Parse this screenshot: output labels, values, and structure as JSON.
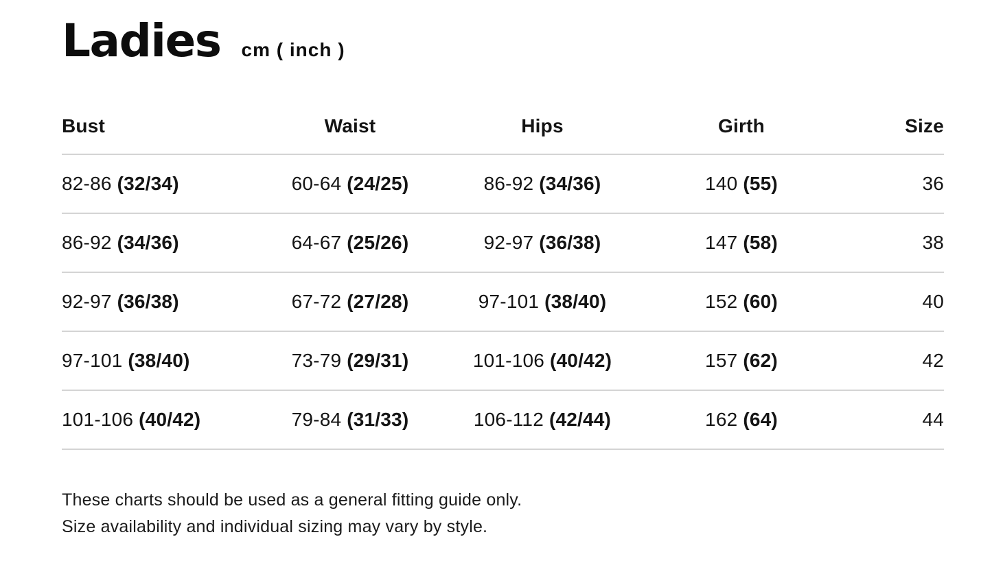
{
  "header": {
    "title": "Ladies",
    "unit_label": "cm ( inch )"
  },
  "table": {
    "columns": [
      {
        "label": "Bust",
        "align": "left"
      },
      {
        "label": "Waist",
        "align": "center"
      },
      {
        "label": "Hips",
        "align": "center"
      },
      {
        "label": "Girth",
        "align": "center"
      },
      {
        "label": "Size",
        "align": "right"
      }
    ],
    "rows": [
      {
        "bust_cm": "82-86",
        "bust_in": "(32/34)",
        "waist_cm": "60-64",
        "waist_in": "(24/25)",
        "hips_cm": "86-92",
        "hips_in": "(34/36)",
        "girth_cm": "140",
        "girth_in": "(55)",
        "size": "36"
      },
      {
        "bust_cm": "86-92",
        "bust_in": "(34/36)",
        "waist_cm": "64-67",
        "waist_in": "(25/26)",
        "hips_cm": "92-97",
        "hips_in": "(36/38)",
        "girth_cm": "147",
        "girth_in": "(58)",
        "size": "38"
      },
      {
        "bust_cm": "92-97",
        "bust_in": "(36/38)",
        "waist_cm": "67-72",
        "waist_in": "(27/28)",
        "hips_cm": "97-101",
        "hips_in": "(38/40)",
        "girth_cm": "152",
        "girth_in": "(60)",
        "size": "40"
      },
      {
        "bust_cm": "97-101",
        "bust_in": "(38/40)",
        "waist_cm": "73-79",
        "waist_in": "(29/31)",
        "hips_cm": "101-106",
        "hips_in": "(40/42)",
        "girth_cm": "157",
        "girth_in": "(62)",
        "size": "42"
      },
      {
        "bust_cm": "101-106",
        "bust_in": "(40/42)",
        "waist_cm": "79-84",
        "waist_in": "(31/33)",
        "hips_cm": "106-112",
        "hips_in": "(42/44)",
        "girth_cm": "162",
        "girth_in": "(64)",
        "size": "44"
      }
    ]
  },
  "footer": {
    "line1": "These charts should be used as a general fitting guide only.",
    "line2": "Size availability and individual sizing may vary by style."
  },
  "colors": {
    "text": "#141414",
    "divider": "#d4d4d4",
    "background": "#ffffff"
  }
}
